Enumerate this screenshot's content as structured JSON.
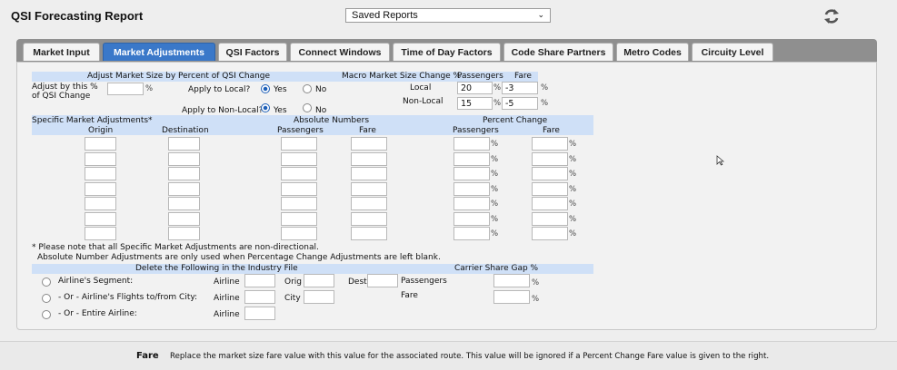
{
  "header": {
    "title": "QSI Forecasting Report",
    "saved_reports": "Saved Reports",
    "refresh_icon": "refresh-icon"
  },
  "tabs": [
    {
      "label": "Market Input"
    },
    {
      "label": "Market Adjustments",
      "active": true
    },
    {
      "label": "QSI Factors"
    },
    {
      "label": "Connect Windows"
    },
    {
      "label": "Time of Day Factors"
    },
    {
      "label": "Code Share Partners"
    },
    {
      "label": "Metro Codes"
    },
    {
      "label": "Circuity Level"
    }
  ],
  "adjust": {
    "heading": "Adjust Market Size by Percent of QSI Change",
    "adjust_label_1": "Adjust by this %",
    "adjust_label_2": "of QSI Change",
    "adjust_value": "",
    "pct": "%",
    "apply_local": "Apply to Local?",
    "apply_nonlocal": "Apply to Non-Local?",
    "yes": "Yes",
    "no": "No"
  },
  "macro": {
    "heading": "Macro Market Size Change %",
    "passengers": "Passengers",
    "fare": "Fare",
    "local_label": "Local",
    "local_passengers": "20",
    "local_fare": "-3",
    "nonlocal_label": "Non-Local",
    "nonlocal_passengers": "15",
    "nonlocal_fare": "-5"
  },
  "specific": {
    "heading": "Specific Market Adjustments*",
    "origin": "Origin",
    "destination": "Destination",
    "absolute_heading": "Absolute Numbers",
    "abs_passengers": "Passengers",
    "abs_fare": "Fare",
    "percent_heading": "Percent Change",
    "pct_passengers": "Passengers",
    "pct_fare": "Fare",
    "row_count": 7
  },
  "notes": {
    "note1": "* Please note that all Specific Market Adjustments are non-directional.",
    "note2": "Absolute Number Adjustments are only used when Percentage Change Adjustments are left blank."
  },
  "delete": {
    "heading": "Delete the Following in the Industry File",
    "opt1": "Airline's Segment:",
    "opt2": "- Or - Airline's Flights to/from City:",
    "opt3": "- Or - Entire Airline:",
    "airline": "Airline",
    "orig": "Orig",
    "dest": "Dest",
    "city": "City"
  },
  "carrier": {
    "heading": "Carrier Share Gap %",
    "passengers": "Passengers",
    "fare": "Fare"
  },
  "footer": {
    "label": "Fare",
    "text": "Replace the market size fare value with this value for the associated route. This value will be ignored if a Percent Change Fare value is given to the right."
  }
}
